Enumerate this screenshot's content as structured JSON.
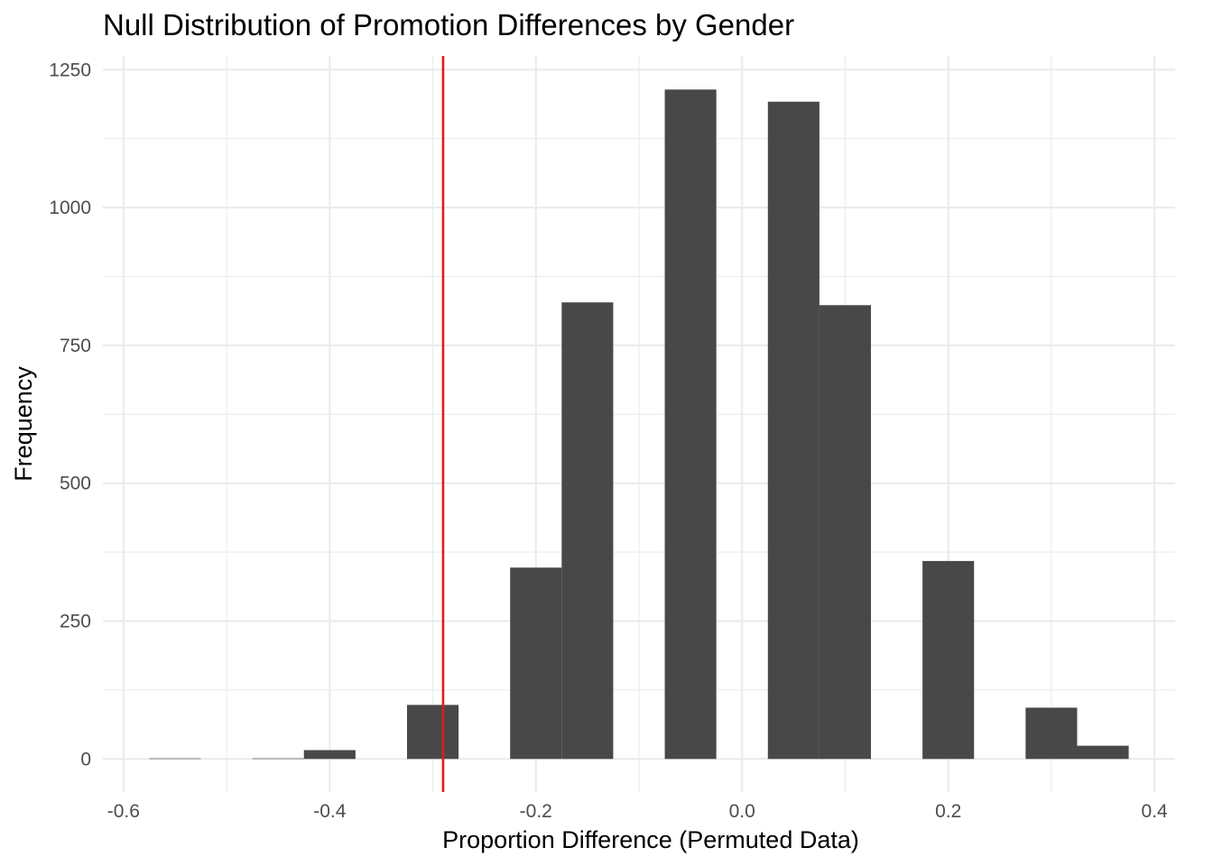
{
  "chart_data": {
    "type": "bar",
    "title": "Null Distribution of Promotion Differences by Gender",
    "xlabel": "Proportion Difference (Permuted Data)",
    "ylabel": "Frequency",
    "xlim": [
      -0.62,
      0.42
    ],
    "ylim": [
      -60,
      1275
    ],
    "x_ticks": [
      -0.6,
      -0.4,
      -0.2,
      0.0,
      0.2,
      0.4
    ],
    "x_tick_labels": [
      "-0.6",
      "-0.4",
      "-0.2",
      "0.0",
      "0.2",
      "0.4"
    ],
    "y_ticks": [
      0,
      250,
      500,
      750,
      1000,
      1250
    ],
    "y_tick_labels": [
      "0",
      "250",
      "500",
      "750",
      "1000",
      "1250"
    ],
    "bin_width": 0.05,
    "bins": [
      {
        "x": -0.55,
        "count": 1
      },
      {
        "x": -0.45,
        "count": 1
      },
      {
        "x": -0.4,
        "count": 16
      },
      {
        "x": -0.3,
        "count": 98
      },
      {
        "x": -0.2,
        "count": 347
      },
      {
        "x": -0.15,
        "count": 828
      },
      {
        "x": -0.05,
        "count": 1214
      },
      {
        "x": 0.05,
        "count": 1192
      },
      {
        "x": 0.1,
        "count": 823
      },
      {
        "x": 0.2,
        "count": 359
      },
      {
        "x": 0.3,
        "count": 93
      },
      {
        "x": 0.35,
        "count": 24
      }
    ],
    "reference_line": {
      "x": -0.29,
      "color": "#e41a1c"
    },
    "bar_color": "#484848",
    "grid": true,
    "legend": "none"
  }
}
